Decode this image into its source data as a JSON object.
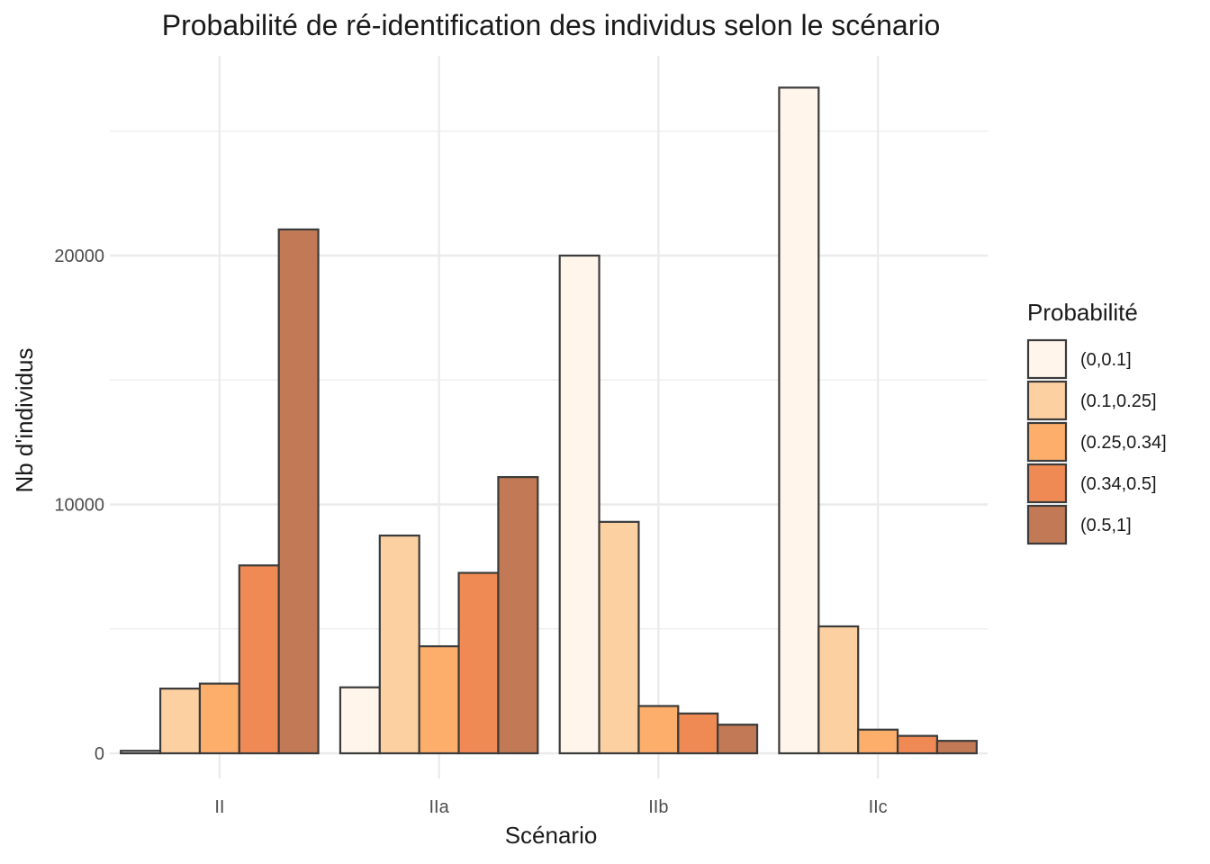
{
  "chart_data": {
    "type": "bar",
    "title": "Probabilité de ré-identification des individus selon le scénario",
    "xlabel": "Scénario",
    "ylabel": "Nb d'individus",
    "ylim": [
      0,
      27500
    ],
    "yticks": [
      0,
      10000,
      20000
    ],
    "grid": true,
    "legend_title": "Probabilité",
    "legend_position": "right",
    "categories": [
      "II",
      "IIa",
      "IIb",
      "IIc"
    ],
    "series": [
      {
        "name": "(0,0.1]",
        "color": "#fff5eb",
        "values": [
          100,
          2650,
          20000,
          26750
        ]
      },
      {
        "name": "(0.1,0.25]",
        "color": "#fdd0a2",
        "values": [
          2600,
          8750,
          9300,
          5100
        ]
      },
      {
        "name": "(0.25,0.34]",
        "color": "#fdae6b",
        "values": [
          2800,
          4300,
          1900,
          950
        ]
      },
      {
        "name": "(0.34,0.5]",
        "color": "#f08a54",
        "values": [
          7550,
          7250,
          1600,
          700
        ]
      },
      {
        "name": "(0.5,1]",
        "color": "#c17a55",
        "values": [
          21050,
          11100,
          1150,
          500
        ]
      }
    ]
  }
}
